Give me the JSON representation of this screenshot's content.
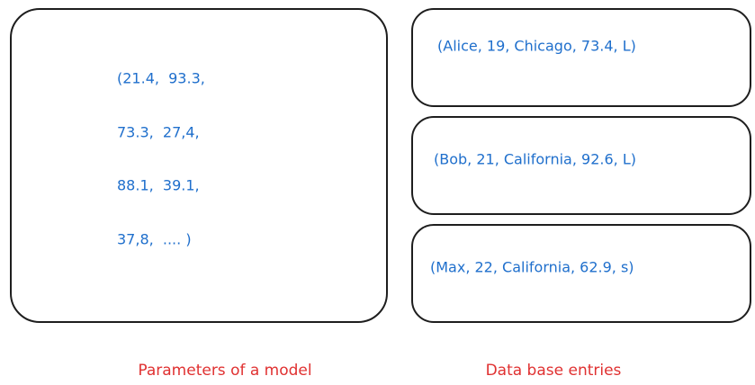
{
  "model_box": {
    "lines": [
      "(21.4,  93.3,",
      "73.3,  27,4,",
      "88.1,  39.1,",
      "37,8,  .... )"
    ],
    "caption": "Parameters of a model"
  },
  "database_box": {
    "entries": [
      "(Alice, 19, Chicago, 73.4, L)",
      "(Bob, 21, California, 92.6, L)",
      "(Max, 22, California, 62.9, s)"
    ],
    "caption": "Data base entries"
  }
}
